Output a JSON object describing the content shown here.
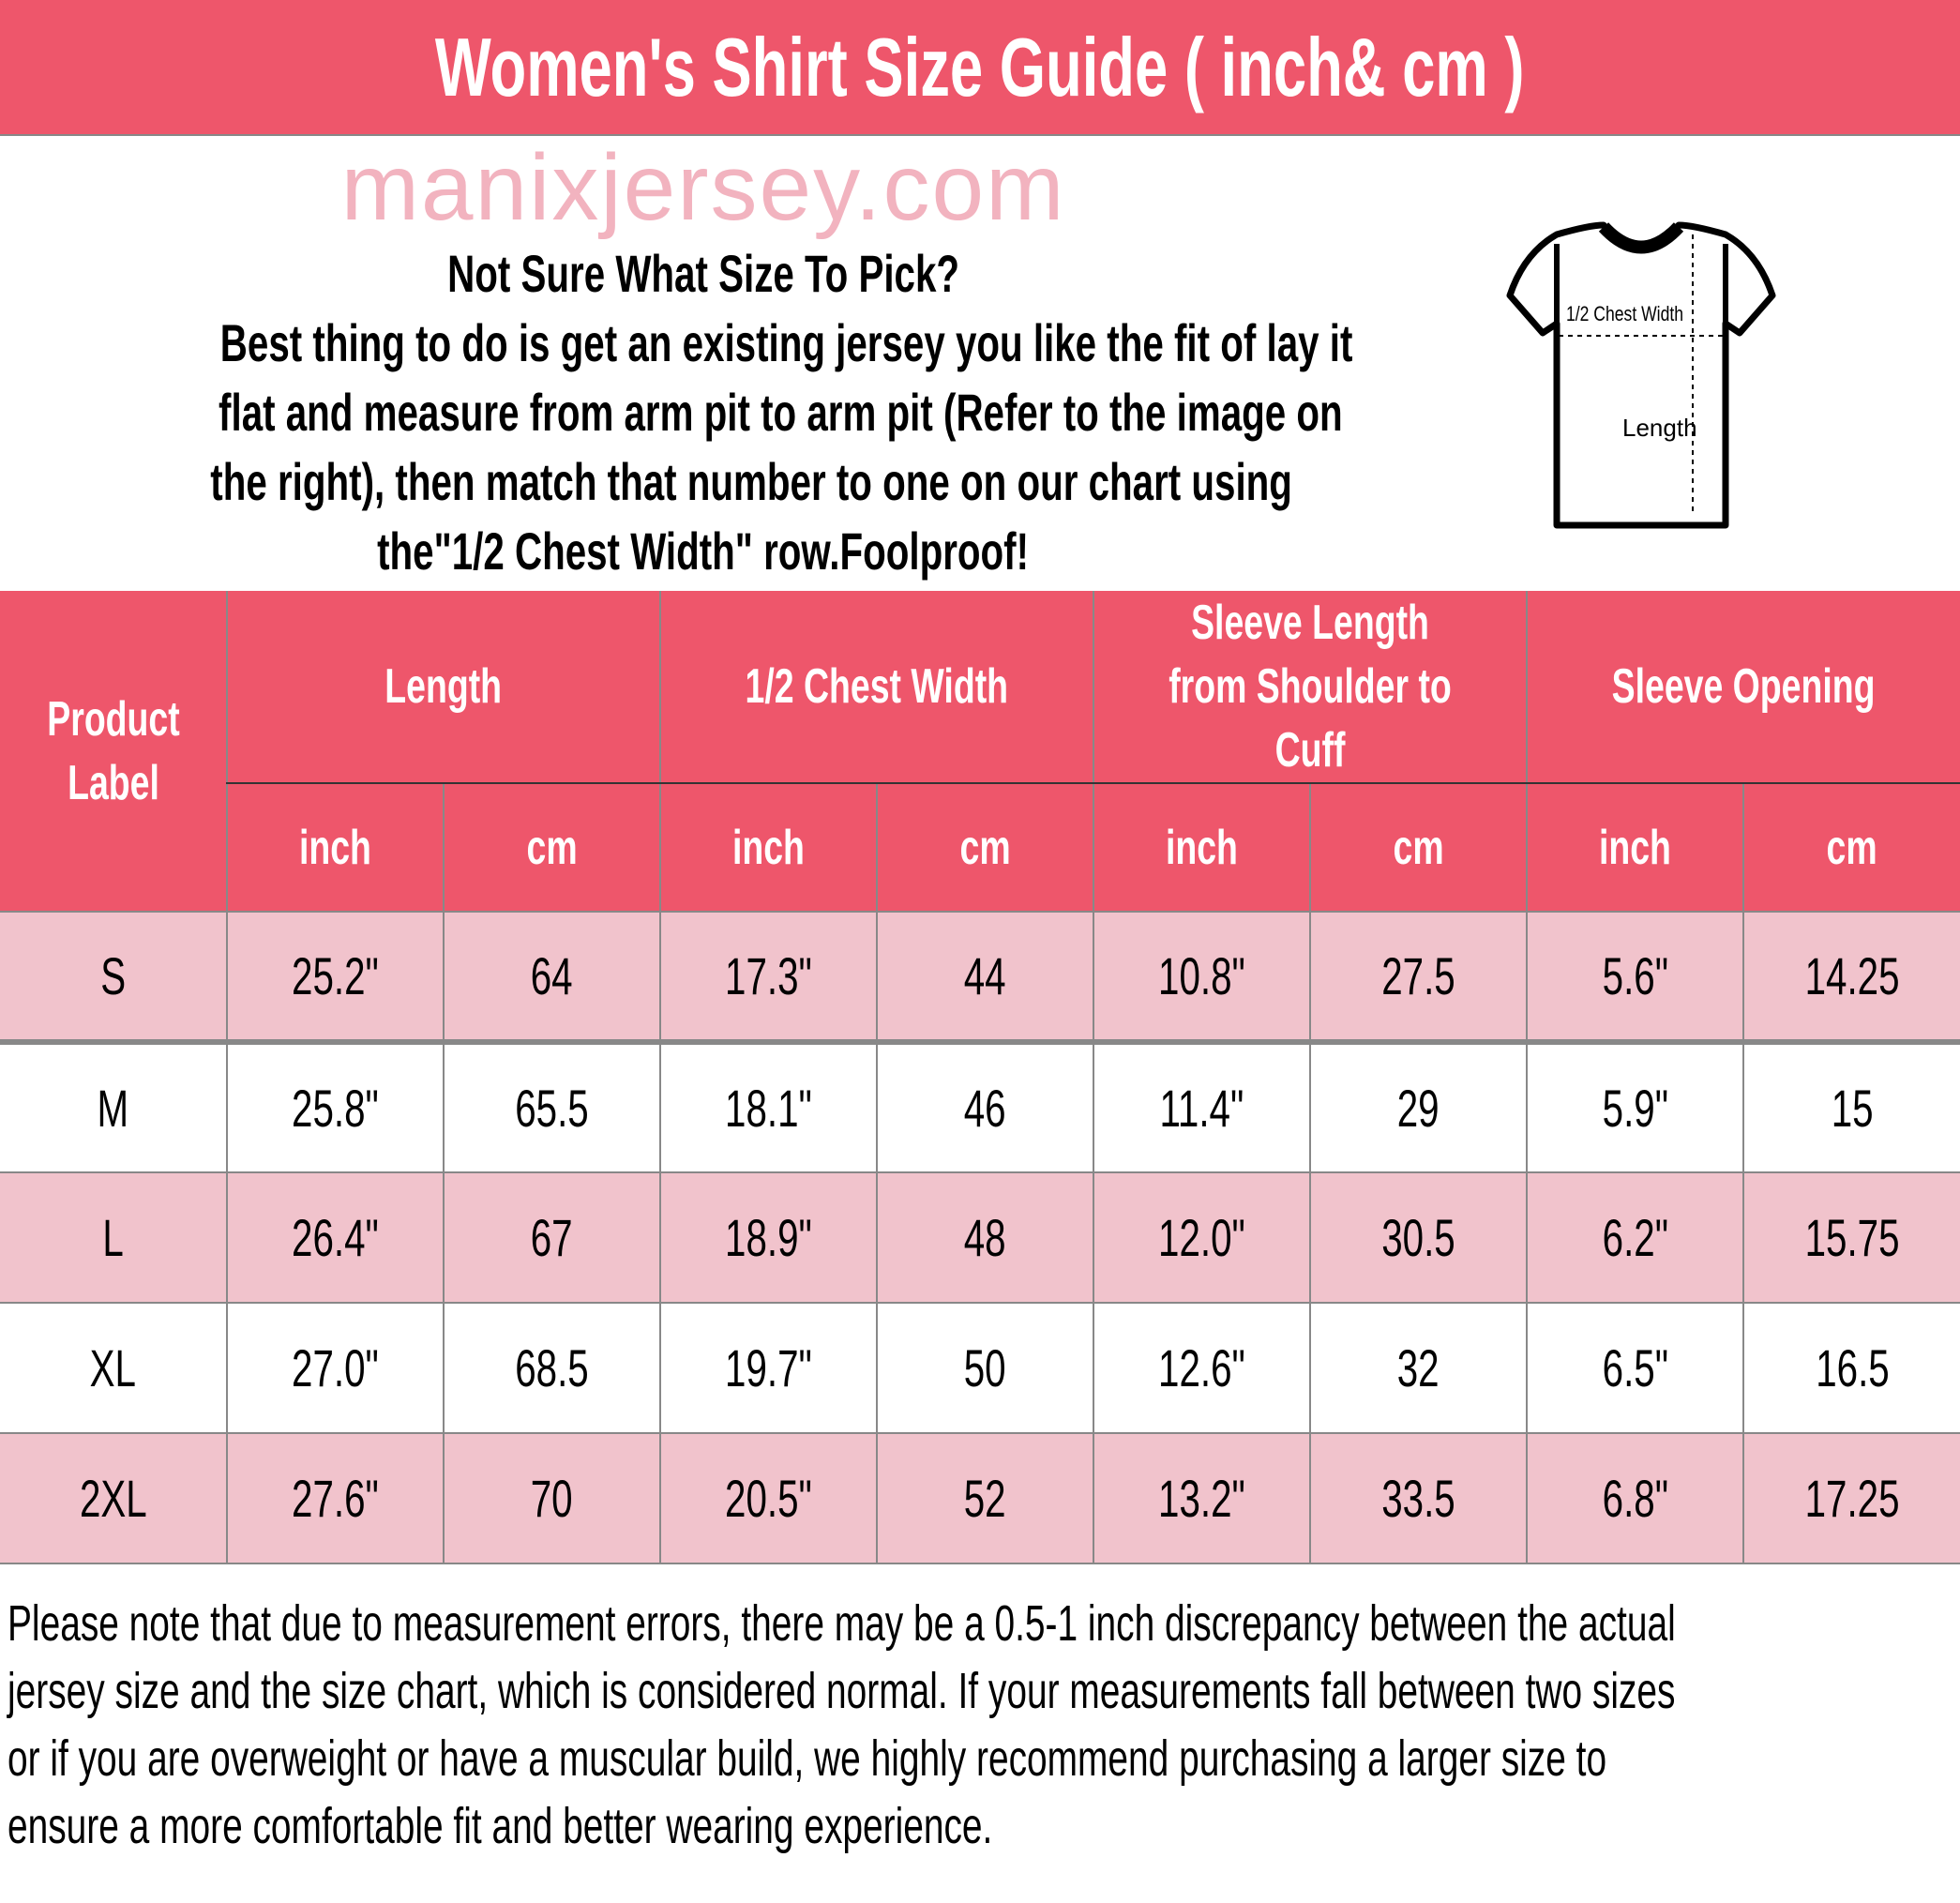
{
  "title": "Women's Shirt Size Guide ( inch& cm )",
  "intro": {
    "lines": [
      "Not Sure What Size To Pick?",
      "Best thing to do is get an existing jersey you like the fit of lay it",
      "flat and measure from arm pit to arm pit (Refer to the image on",
      "the right), then match that number to one on our chart using",
      "the\"1/2 Chest Width\" row.Foolproof!"
    ]
  },
  "diagram": {
    "chest_label": "1/2 Chest Width",
    "length_label": "Length"
  },
  "table": {
    "first_header": "Product Label",
    "groups": [
      "Length",
      "1/2 Chest Width",
      "Sleeve Length from Shoulder to Cuff",
      "Sleeve Opening"
    ],
    "units": [
      "inch",
      "cm",
      "inch",
      "cm",
      "inch",
      "cm",
      "inch",
      "cm"
    ],
    "rows": [
      [
        "S",
        "25.2\"",
        "64",
        "17.3\"",
        "44",
        "10.8\"",
        "27.5",
        "5.6\"",
        "14.25"
      ],
      [
        "M",
        "25.8\"",
        "65.5",
        "18.1\"",
        "46",
        "11.4\"",
        "29",
        "5.9\"",
        "15"
      ],
      [
        "L",
        "26.4\"",
        "67",
        "18.9\"",
        "48",
        "12.0\"",
        "30.5",
        "6.2\"",
        "15.75"
      ],
      [
        "XL",
        "27.0\"",
        "68.5",
        "19.7\"",
        "50",
        "12.6\"",
        "32",
        "6.5\"",
        "16.5"
      ],
      [
        "2XL",
        "27.6\"",
        "70",
        "20.5\"",
        "52",
        "13.2\"",
        "33.5",
        "6.8\"",
        "17.25"
      ]
    ]
  },
  "watermark": "manixjersey.com",
  "note_lines": [
    "Please note that due to measurement errors, there may be a 0.5-1 inch discrepancy between the actual",
    "jersey size and the size chart, which is considered normal. If your measurements fall between two sizes",
    "or if you are overweight or have a muscular build, we highly recommend purchasing a larger size to",
    "ensure a more comfortable fit and better wearing experience."
  ],
  "colors": {
    "header": "#ee566b",
    "pink_row": "#f1c3cc"
  }
}
